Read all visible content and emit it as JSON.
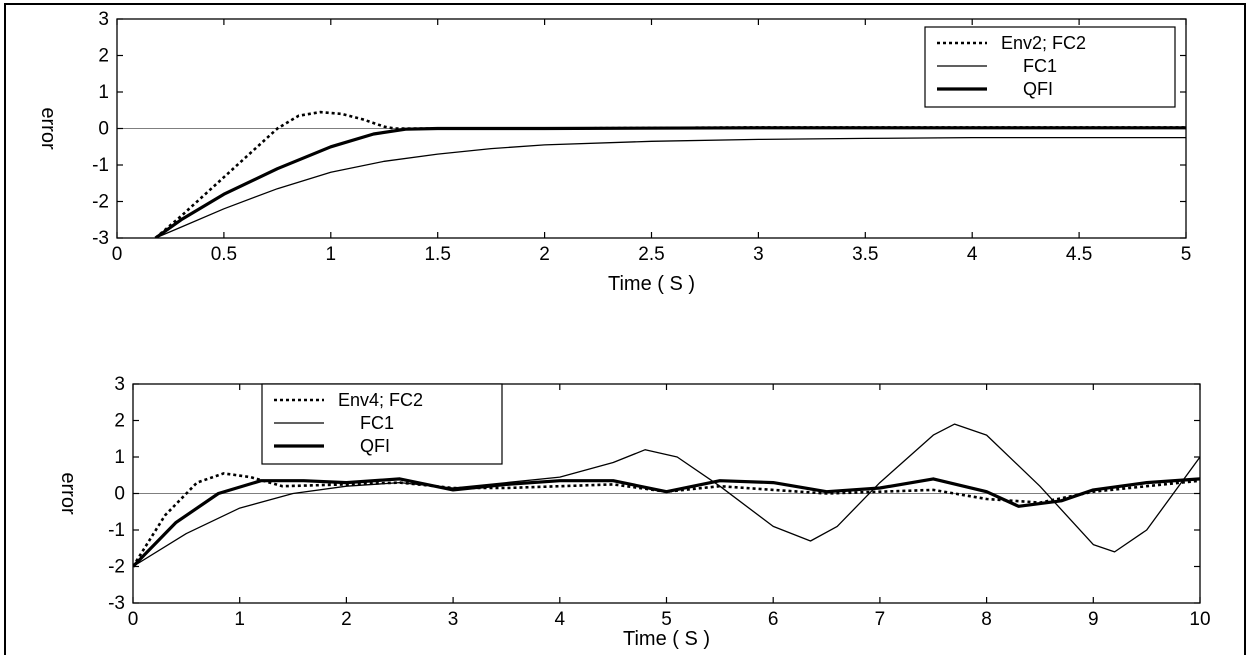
{
  "chart_data": [
    {
      "type": "line",
      "xlabel": "Time ( S )",
      "ylabel": "error",
      "xlim": [
        0,
        5
      ],
      "ylim": [
        -3,
        3
      ],
      "xticks": [
        "0",
        "0.5",
        "1",
        "1.5",
        "2",
        "2.5",
        "3",
        "3.5",
        "4",
        "4.5",
        "5"
      ],
      "yticks": [
        "3",
        "2",
        "1",
        "0",
        "-1",
        "-2",
        "-3"
      ],
      "legend_position": "top-right",
      "series": [
        {
          "name": "Env2; FC2",
          "style": "dotted",
          "width": 2.6,
          "x": [
            0.18,
            0.3,
            0.45,
            0.6,
            0.75,
            0.85,
            0.95,
            1.05,
            1.15,
            1.25,
            1.3,
            1.5,
            2,
            3,
            4,
            5
          ],
          "y": [
            -3,
            -2.4,
            -1.6,
            -0.8,
            0,
            0.35,
            0.45,
            0.4,
            0.25,
            0.05,
            0,
            0,
            0,
            0.03,
            0.03,
            0.03
          ]
        },
        {
          "name": "FC1",
          "style": "solid",
          "width": 1.3,
          "x": [
            0.18,
            0.3,
            0.5,
            0.75,
            1,
            1.25,
            1.5,
            1.75,
            2,
            2.5,
            3,
            3.5,
            4,
            4.5,
            5
          ],
          "y": [
            -3,
            -2.7,
            -2.2,
            -1.65,
            -1.2,
            -0.9,
            -0.7,
            -0.55,
            -0.45,
            -0.35,
            -0.3,
            -0.27,
            -0.25,
            -0.25,
            -0.25
          ]
        },
        {
          "name": "QFI",
          "style": "solid",
          "width": 3.2,
          "x": [
            0.18,
            0.3,
            0.5,
            0.75,
            1,
            1.2,
            1.35,
            1.5,
            2,
            3,
            4,
            5
          ],
          "y": [
            -3,
            -2.5,
            -1.8,
            -1.1,
            -0.5,
            -0.15,
            -0.02,
            0,
            0,
            0.02,
            0.02,
            0.02
          ]
        }
      ]
    },
    {
      "type": "line",
      "xlabel": "Time ( S )",
      "ylabel": "error",
      "xlim": [
        0,
        10
      ],
      "ylim": [
        -3,
        3
      ],
      "xticks": [
        "0",
        "1",
        "2",
        "3",
        "4",
        "5",
        "6",
        "7",
        "8",
        "9",
        "10"
      ],
      "yticks": [
        "3",
        "2",
        "1",
        "0",
        "-1",
        "-2",
        "-3"
      ],
      "legend_position": "top-left",
      "series": [
        {
          "name": "Env4; FC2",
          "style": "dotted",
          "width": 2.6,
          "x": [
            0,
            0.3,
            0.6,
            0.85,
            1.1,
            1.4,
            2,
            2.5,
            3,
            3.5,
            4,
            4.5,
            5,
            5.5,
            6,
            6.5,
            7,
            7.5,
            8,
            8.5,
            9,
            9.5,
            10
          ],
          "y": [
            -2,
            -0.6,
            0.3,
            0.55,
            0.45,
            0.2,
            0.25,
            0.3,
            0.15,
            0.15,
            0.2,
            0.25,
            0.05,
            0.2,
            0.1,
            0,
            0.05,
            0.1,
            -0.15,
            -0.25,
            0.05,
            0.2,
            0.35
          ]
        },
        {
          "name": "FC1",
          "style": "solid",
          "width": 1.3,
          "x": [
            0,
            0.5,
            1,
            1.5,
            2,
            2.5,
            3,
            3.5,
            4,
            4.5,
            4.8,
            5.1,
            5.5,
            6,
            6.35,
            6.6,
            7,
            7.5,
            7.7,
            8,
            8.5,
            9,
            9.2,
            9.5,
            10
          ],
          "y": [
            -2,
            -1.1,
            -0.4,
            0,
            0.2,
            0.3,
            0.15,
            0.3,
            0.45,
            0.85,
            1.2,
            1.0,
            0.2,
            -0.9,
            -1.3,
            -0.9,
            0.3,
            1.6,
            1.9,
            1.6,
            0.2,
            -1.4,
            -1.6,
            -1.0,
            1.0
          ]
        },
        {
          "name": "QFI",
          "style": "solid",
          "width": 3.2,
          "x": [
            0,
            0.4,
            0.8,
            1.2,
            1.6,
            2,
            2.5,
            3,
            3.5,
            4,
            4.5,
            5,
            5.5,
            6,
            6.5,
            7,
            7.5,
            8,
            8.3,
            8.7,
            9,
            9.5,
            10
          ],
          "y": [
            -2,
            -0.8,
            0,
            0.35,
            0.35,
            0.3,
            0.4,
            0.1,
            0.25,
            0.35,
            0.35,
            0.05,
            0.35,
            0.3,
            0.05,
            0.15,
            0.4,
            0.05,
            -0.35,
            -0.2,
            0.1,
            0.3,
            0.4
          ]
        }
      ]
    }
  ]
}
